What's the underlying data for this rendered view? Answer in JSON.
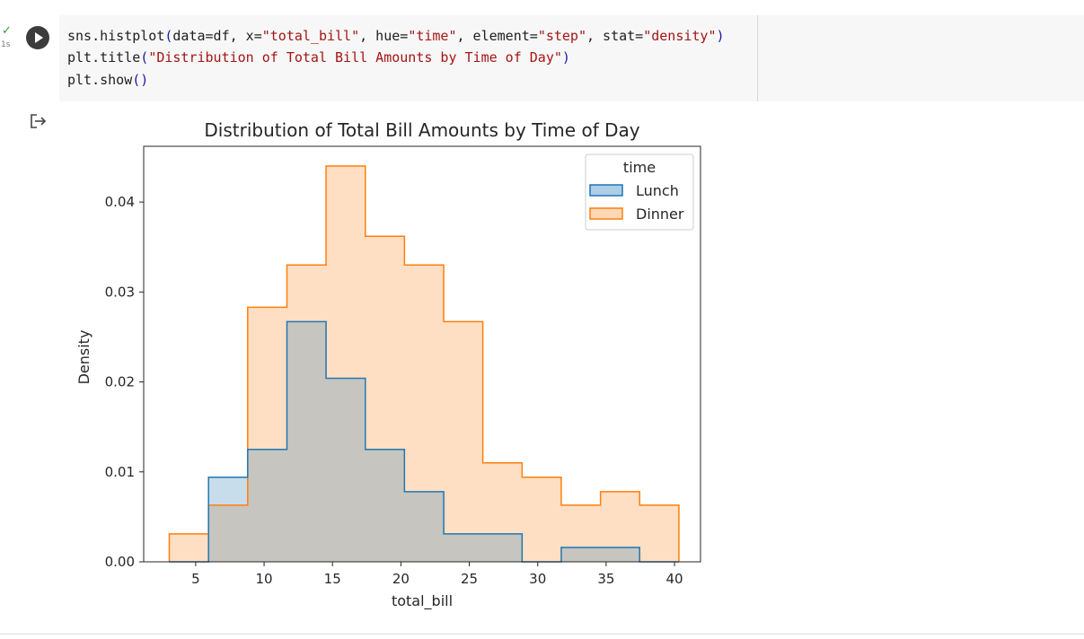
{
  "cell": {
    "status_check": "✓",
    "exec_time": "1s",
    "run_button_icon": "play-icon",
    "output_icon": "output-redirect-icon",
    "code_lines": [
      [
        {
          "t": "sns.histplot",
          "c": "plain"
        },
        {
          "t": "(",
          "c": "paren"
        },
        {
          "t": "data=df, x=",
          "c": "plain"
        },
        {
          "t": "\"total_bill\"",
          "c": "str"
        },
        {
          "t": ", hue=",
          "c": "plain"
        },
        {
          "t": "\"time\"",
          "c": "str"
        },
        {
          "t": ", element=",
          "c": "plain"
        },
        {
          "t": "\"step\"",
          "c": "str"
        },
        {
          "t": ", stat=",
          "c": "plain"
        },
        {
          "t": "\"density\"",
          "c": "str"
        },
        {
          "t": ")",
          "c": "paren"
        }
      ],
      [
        {
          "t": "plt.title",
          "c": "plain"
        },
        {
          "t": "(",
          "c": "paren"
        },
        {
          "t": "\"Distribution of Total Bill Amounts by Time of Day\"",
          "c": "str"
        },
        {
          "t": ")",
          "c": "paren"
        }
      ],
      [
        {
          "t": "plt.show",
          "c": "plain"
        },
        {
          "t": "()",
          "c": "paren"
        }
      ]
    ]
  },
  "chart_data": {
    "type": "area",
    "title": "Distribution of Total Bill Amounts by Time of Day",
    "xlabel": "total_bill",
    "ylabel": "Density",
    "xlim": [
      1.2,
      41.9
    ],
    "ylim": [
      0,
      0.0462
    ],
    "xticks": [
      5,
      10,
      15,
      20,
      25,
      30,
      35,
      40
    ],
    "xtick_labels": [
      "5",
      "10",
      "15",
      "20",
      "25",
      "30",
      "35",
      "40"
    ],
    "yticks": [
      0,
      0.01,
      0.02,
      0.03,
      0.04
    ],
    "ytick_labels": [
      "0.00",
      "0.01",
      "0.02",
      "0.03",
      "0.04"
    ],
    "grid": false,
    "legend": {
      "title": "time",
      "placement": "top-right"
    },
    "bin_edges": [
      3.07,
      5.94,
      8.8,
      11.67,
      14.53,
      17.4,
      20.26,
      23.13,
      25.99,
      28.86,
      31.72,
      34.59,
      37.45,
      40.32
    ],
    "series": [
      {
        "name": "Lunch",
        "color": "#1f77b4",
        "fill": "#aecde6",
        "values": [
          0,
          0.0094,
          0.0125,
          0.0267,
          0.0204,
          0.0125,
          0.0078,
          0.0031,
          0.0031,
          0,
          0.0016,
          0.0016,
          0
        ]
      },
      {
        "name": "Dinner",
        "color": "#ff7f0e",
        "fill": "#ffd7b5",
        "values": [
          0.0031,
          0.0063,
          0.0283,
          0.033,
          0.044,
          0.0362,
          0.033,
          0.0267,
          0.011,
          0.0094,
          0.0063,
          0.0078,
          0.0063
        ]
      }
    ]
  }
}
